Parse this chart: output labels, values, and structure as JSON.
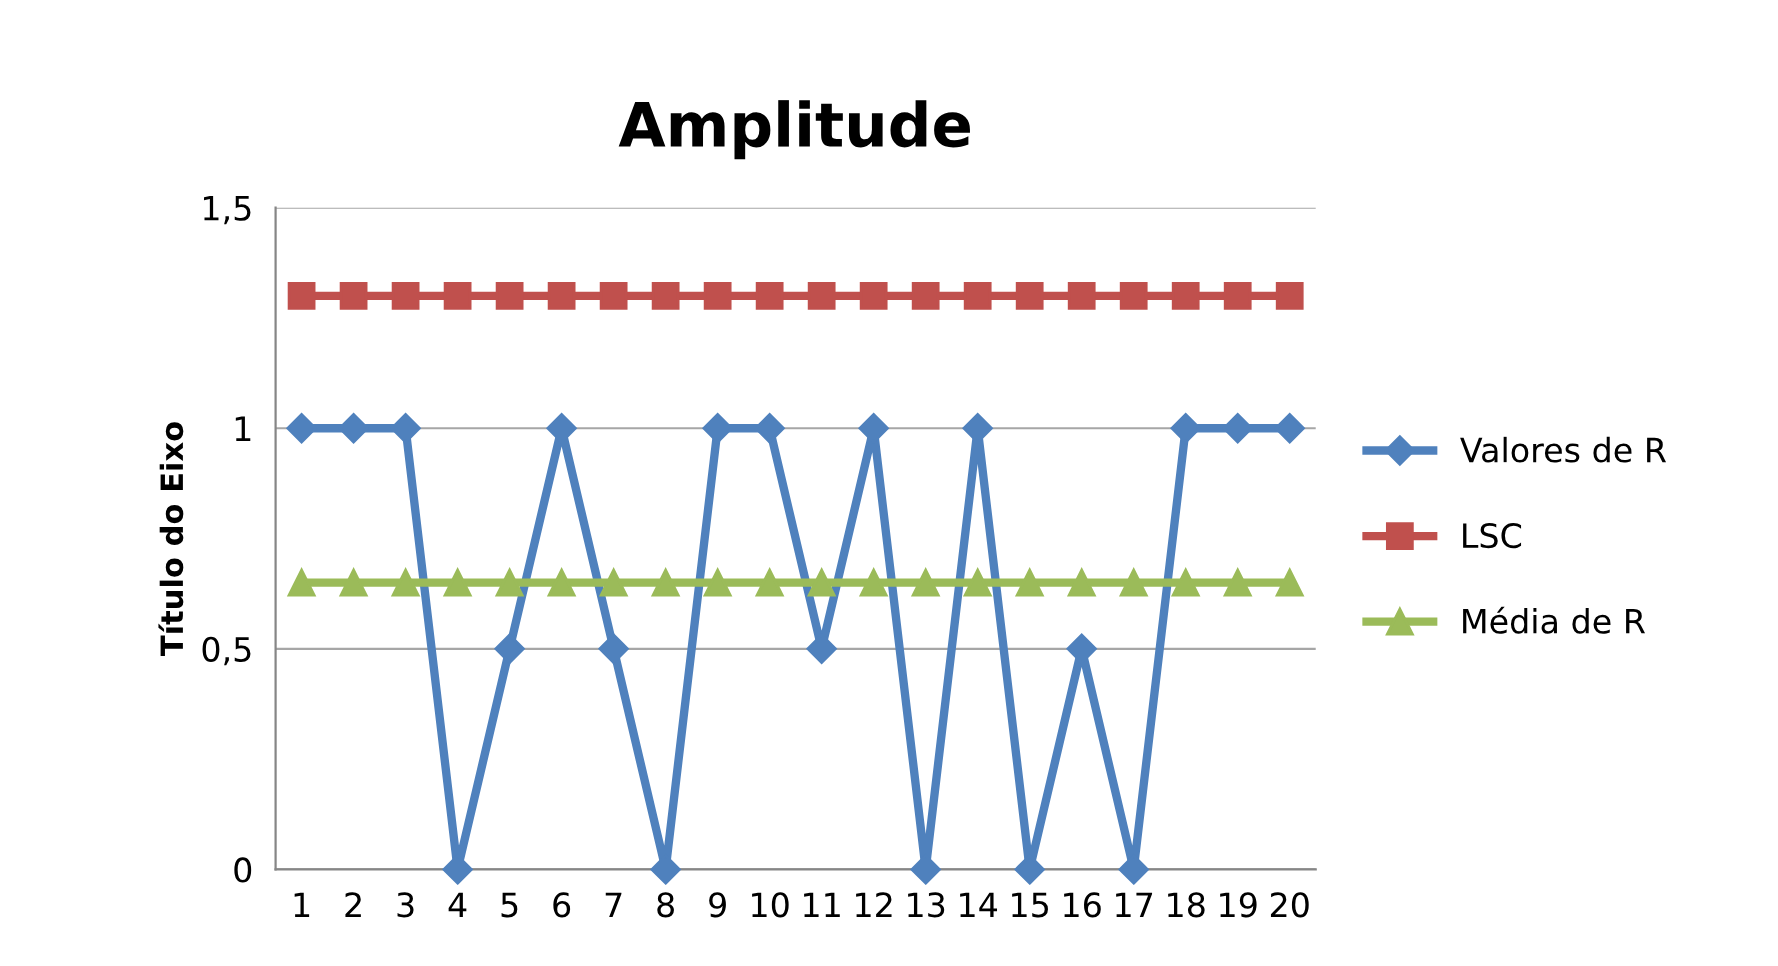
{
  "chart_data": {
    "type": "line",
    "title": "Amplitude",
    "ylabel": "Título do Eixo",
    "categories": [
      "1",
      "2",
      "3",
      "4",
      "5",
      "6",
      "7",
      "8",
      "9",
      "10",
      "11",
      "12",
      "13",
      "14",
      "15",
      "16",
      "17",
      "18",
      "19",
      "20"
    ],
    "series": [
      {
        "name": "Valores de R",
        "color": "#4f81bd",
        "marker": "diamond",
        "values": [
          1,
          1,
          1,
          0,
          0.5,
          1,
          0.5,
          0,
          1,
          1,
          0.5,
          1,
          0,
          1,
          0,
          0.5,
          0,
          1,
          1,
          1
        ]
      },
      {
        "name": "LSC",
        "color": "#c0504d",
        "marker": "square",
        "values": [
          1.3,
          1.3,
          1.3,
          1.3,
          1.3,
          1.3,
          1.3,
          1.3,
          1.3,
          1.3,
          1.3,
          1.3,
          1.3,
          1.3,
          1.3,
          1.3,
          1.3,
          1.3,
          1.3,
          1.3
        ]
      },
      {
        "name": "Média de R",
        "color": "#9bbb59",
        "marker": "triangle",
        "values": [
          0.65,
          0.65,
          0.65,
          0.65,
          0.65,
          0.65,
          0.65,
          0.65,
          0.65,
          0.65,
          0.65,
          0.65,
          0.65,
          0.65,
          0.65,
          0.65,
          0.65,
          0.65,
          0.65,
          0.65
        ]
      }
    ],
    "ylim": [
      0,
      1.5
    ],
    "yticks": [
      0,
      {
        "value": 0.5,
        "label": "0,5"
      },
      1,
      {
        "value": 1.5,
        "label": "1,5"
      }
    ],
    "grid": "y",
    "legend": "right"
  }
}
